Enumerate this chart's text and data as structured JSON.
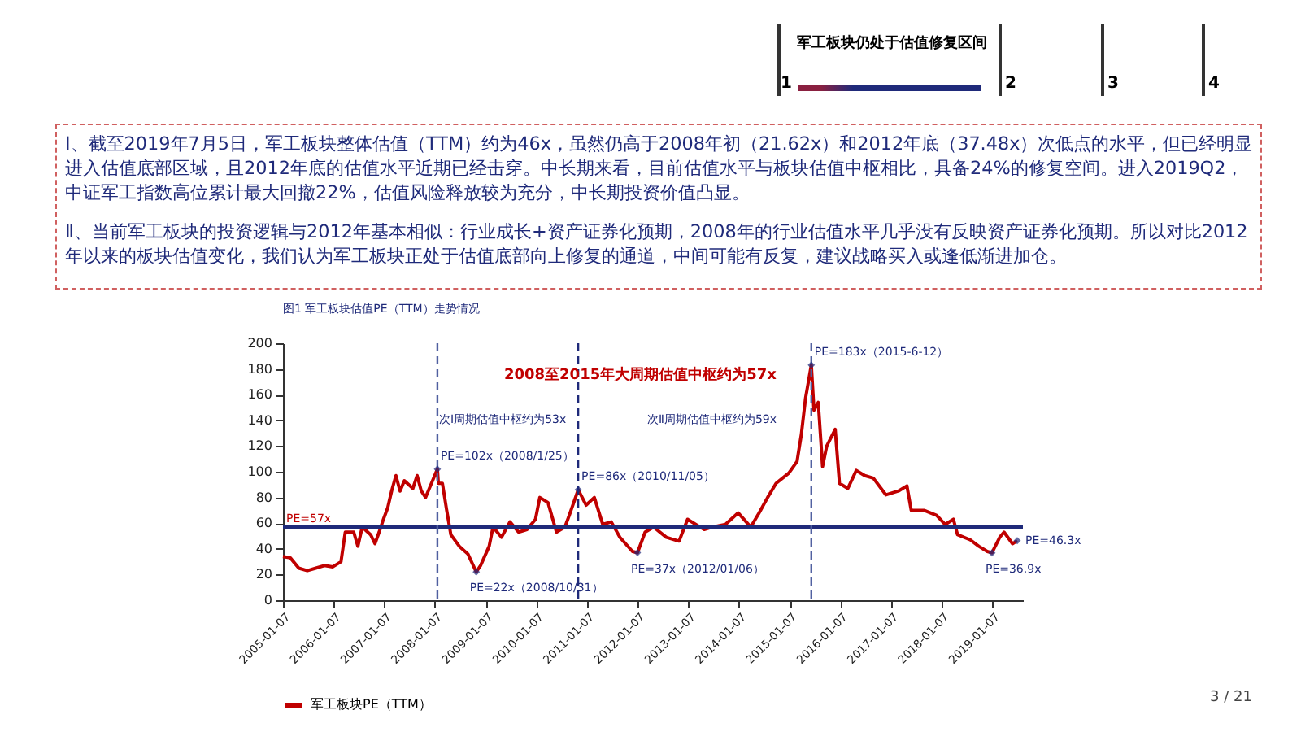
{
  "chart_data": {
    "type": "line",
    "title": "图1 军工板块估值PE（TTM）走势情况",
    "x": [
      "2005-01-07",
      "2005-03",
      "2005-05",
      "2005-07",
      "2005-09",
      "2005-11",
      "2006-01",
      "2006-03",
      "2006-04",
      "2006-06",
      "2006-07",
      "2006-08",
      "2006-10",
      "2006-11",
      "2006-12",
      "2007-01",
      "2007-02",
      "2007-03",
      "2007-04",
      "2007-05",
      "2007-06",
      "2007-08",
      "2007-09",
      "2007-10",
      "2007-11",
      "2008-01-25",
      "2008-02",
      "2008-03",
      "2008-04",
      "2008-05",
      "2008-07",
      "2008-09",
      "2008-10-31",
      "2008-12",
      "2009-02",
      "2009-03",
      "2009-05",
      "2009-07",
      "2009-09",
      "2009-11",
      "2010-01",
      "2010-02",
      "2010-04",
      "2010-06",
      "2010-08",
      "2010-09",
      "2010-11-05",
      "2011-01",
      "2011-03",
      "2011-05",
      "2011-07",
      "2011-09",
      "2011-12",
      "2012-01-06",
      "2012-03",
      "2012-05",
      "2012-08",
      "2012-11",
      "2013-01",
      "2013-05",
      "2013-07",
      "2013-10",
      "2014-01",
      "2014-04",
      "2014-06",
      "2014-08",
      "2014-10",
      "2015-01",
      "2015-03",
      "2015-04",
      "2015-05",
      "2015-06-12",
      "2015-07",
      "2015-08",
      "2015-09",
      "2015-10",
      "2015-12",
      "2016-01",
      "2016-03",
      "2016-05",
      "2016-07",
      "2016-09",
      "2016-12",
      "2017-03",
      "2017-05",
      "2017-06",
      "2017-09",
      "2017-12",
      "2018-02",
      "2018-04",
      "2018-05",
      "2018-08",
      "2018-10",
      "2018-12",
      "2019-01-04",
      "2019-03",
      "2019-04",
      "2019-06",
      "2019-07-05"
    ],
    "series": [
      {
        "name": "军工板块PE（TTM）",
        "color": "#c00000",
        "values": [
          34,
          33,
          25,
          23,
          25,
          27,
          26,
          30,
          53,
          53,
          42,
          57,
          51,
          44,
          53,
          63,
          72,
          85,
          97,
          85,
          93,
          87,
          97,
          85,
          80,
          102,
          91,
          91,
          70,
          51,
          42,
          36,
          22,
          27,
          42,
          57,
          49,
          61,
          53,
          55,
          63,
          80,
          76,
          53,
          57,
          66,
          86,
          74,
          80,
          59,
          61,
          49,
          38,
          37,
          53,
          57,
          49,
          46,
          63,
          55,
          57,
          59,
          68,
          57,
          68,
          80,
          91,
          99,
          108,
          129,
          157,
          183,
          148,
          154,
          104,
          120,
          133,
          91,
          87,
          101,
          97,
          95,
          82,
          85,
          89,
          70,
          70,
          66,
          59,
          63,
          51,
          47,
          42,
          38,
          36.9,
          49,
          53,
          44,
          46.3
        ]
      }
    ],
    "xlim": [
      "2005-01-07",
      "2019-08-15"
    ],
    "xticks": [
      "2005-01-07",
      "2006-01-07",
      "2007-01-07",
      "2008-01-07",
      "2009-01-07",
      "2010-01-07",
      "2011-01-07",
      "2012-01-07",
      "2013-01-07",
      "2014-01-07",
      "2015-01-07",
      "2016-01-07",
      "2017-01-07",
      "2018-01-07",
      "2019-01-07"
    ],
    "ylim": [
      0,
      200
    ],
    "yticks": [
      0,
      20,
      40,
      60,
      80,
      100,
      120,
      140,
      160,
      180,
      200
    ],
    "legend": "bottom",
    "grid": false,
    "marker": "none",
    "line_style": "solid",
    "ref_lines": [
      {
        "axis": "y",
        "value": 57,
        "label": "PE=57x",
        "color": "#1f2a7a",
        "line_style": "solid"
      },
      {
        "axis": "x",
        "value": "2008-01-25",
        "color": "#5060a0",
        "line_style": "dashed"
      },
      {
        "axis": "x",
        "value": "2010-11-05",
        "color": "#1f2a7a",
        "line_style": "dashed"
      },
      {
        "axis": "x",
        "value": "2015-06-12",
        "color": "#5060a0",
        "line_style": "dashed"
      }
    ],
    "annotations": [
      "军工板块仍处于估值修复区间",
      "1",
      "2",
      "3",
      "4",
      "Ⅰ、截至2019年7月5日，军工板块整体估值（TTM）约为46x，虽然仍高于2008年初（21.62x）和2012年底（37.48x）次低点的水平，但已经明显进入估值底部区域，且2012年底的估值水平近期已经击穿。中长期来看，目前估值水平与板块估值中枢相比，具备24%的修复空间。进入2019Q2，中证军工指数高位累计最大回撤22%，估值风险释放较为充分，中长期投资价值凸显。",
      "Ⅱ、当前军工板块的投资逻辑与2012年基本相似：行业成长+资产证券化预期，2008年的行业估值水平几乎没有反映资产证券化预期。所以对比2012年以来的板块估值变化，我们认为军工板块正处于估值底部向上修复的通道，中间可能有反复，建议战略买入或逢低渐进加仓。",
      "3 / 21",
      "2008至2015年大周期估值中枢约为57x",
      "次Ⅰ周期估值中枢约为53x",
      "次Ⅱ周期估值中枢约为59x",
      {
        "text": "PE=102x（2008/1/25）",
        "x": "2008-01-25",
        "y": 102
      },
      {
        "text": "PE=22x（2008/10/31）",
        "x": "2008-10-31",
        "y": 22
      },
      {
        "text": "PE=86x（2010/11/05）",
        "x": "2010-11-05",
        "y": 86
      },
      {
        "text": "PE=37x（2012/01/06）",
        "x": "2012-01-06",
        "y": 37
      },
      {
        "text": "PE=183x（2015-6-12）",
        "x": "2015-06-12",
        "y": 183
      },
      {
        "text": "PE=46.3x",
        "x": "2019-07-05",
        "y": 46.3
      },
      {
        "text": "PE=36.9x",
        "x": "2019-01-04",
        "y": 36.9
      }
    ]
  }
}
